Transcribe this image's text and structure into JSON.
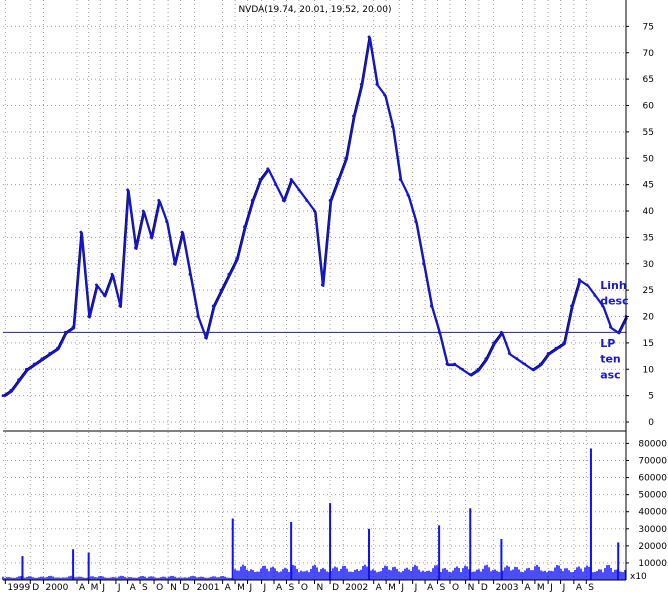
{
  "colors": {
    "price_series": "#1414d2",
    "price_alt": "#000000",
    "volume": "#1010ff",
    "support_line": "#2020a0",
    "grid": "#a0a0a0",
    "annotation": "#1a1acc"
  },
  "chart_data": [
    {
      "type": "line",
      "title": "NVDA(19.74, 20.01, 19.52, 20.00)",
      "ylim": [
        0,
        78
      ],
      "y_ticks": [
        0,
        5,
        10,
        15,
        20,
        25,
        30,
        35,
        40,
        45,
        50,
        55,
        60,
        65,
        70,
        75
      ],
      "y_tick_labels": [
        "0",
        "5",
        "10",
        "15",
        "20",
        "25",
        "30",
        "35",
        "40",
        "45",
        "50",
        "55",
        "60",
        "65",
        "70",
        "75"
      ],
      "horizontal_line": 17,
      "x_range": [
        0,
        80
      ],
      "series": [
        {
          "x": [
            0,
            1,
            2,
            3,
            4,
            5,
            6,
            7,
            8,
            9,
            10,
            11,
            12,
            13,
            14,
            15,
            16,
            17,
            18,
            19,
            20,
            21,
            22,
            23,
            24,
            25,
            26,
            27,
            28,
            29,
            30,
            31,
            32,
            33,
            34,
            35,
            36,
            37,
            38,
            39,
            40,
            41,
            42,
            43,
            44,
            45,
            46,
            47,
            48,
            49,
            50,
            51,
            52,
            53,
            54,
            55,
            56,
            57,
            58,
            59,
            60,
            61,
            62,
            63,
            64,
            65,
            66,
            67,
            68,
            69,
            70,
            71,
            72,
            73,
            74,
            75,
            76,
            77,
            78,
            79,
            80
          ],
          "values": [
            5,
            6,
            8,
            10,
            11,
            12,
            13,
            14,
            17,
            18,
            36,
            20,
            26,
            24,
            28,
            22,
            44,
            33,
            40,
            35,
            42,
            38,
            30,
            36,
            28,
            20,
            16,
            22,
            25,
            28,
            31,
            37,
            42,
            46,
            48,
            45,
            42,
            46,
            44,
            42,
            40,
            26,
            42,
            46,
            50,
            58,
            64,
            73,
            64,
            62,
            56,
            46,
            43,
            38,
            30,
            22,
            17,
            11,
            11,
            10,
            9,
            10,
            12,
            15,
            17,
            13,
            12,
            11,
            10,
            11,
            13,
            14,
            15,
            22,
            27,
            26,
            24,
            22,
            18,
            17,
            20
          ]
        }
      ],
      "annotations": [
        {
          "text": "Linh",
          "x": 79,
          "y": 26
        },
        {
          "text": "desc",
          "x": 79,
          "y": 23
        },
        {
          "text": "LP",
          "x": 79,
          "y": 15
        },
        {
          "text": "ten",
          "x": 79,
          "y": 12
        },
        {
          "text": "asc",
          "x": 79,
          "y": 9
        }
      ]
    },
    {
      "type": "bar",
      "ylim": [
        0,
        80000
      ],
      "y_ticks": [
        10000,
        20000,
        30000,
        40000,
        50000,
        60000,
        70000,
        80000
      ],
      "y_tick_labels": [
        "10000",
        "20000",
        "30000",
        "40000",
        "50000",
        "60000",
        "70000",
        "80000"
      ],
      "unit_label": "x10",
      "x_range": [
        0,
        80
      ],
      "spikes": [
        {
          "x": 2.5,
          "value": 14000
        },
        {
          "x": 9,
          "value": 18000
        },
        {
          "x": 11,
          "value": 16000
        },
        {
          "x": 29.5,
          "value": 36000
        },
        {
          "x": 37,
          "value": 34000
        },
        {
          "x": 42,
          "value": 45000
        },
        {
          "x": 47,
          "value": 30000
        },
        {
          "x": 56,
          "value": 32000
        },
        {
          "x": 60,
          "value": 42000
        },
        {
          "x": 64,
          "value": 24000
        },
        {
          "x": 75.5,
          "value": 77000
        },
        {
          "x": 79,
          "value": 22000
        }
      ]
    }
  ],
  "x_axis": {
    "labels": [
      {
        "x": 0.3,
        "text": "1999"
      },
      {
        "x": 3.5,
        "text": "D"
      },
      {
        "x": 5.2,
        "text": "2000"
      },
      {
        "x": 9.5,
        "text": "A"
      },
      {
        "x": 11,
        "text": "M"
      },
      {
        "x": 12.5,
        "text": "J"
      },
      {
        "x": 14.5,
        "text": "J"
      },
      {
        "x": 16,
        "text": "A"
      },
      {
        "x": 17.6,
        "text": "S"
      },
      {
        "x": 19.4,
        "text": "O"
      },
      {
        "x": 21.2,
        "text": "N"
      },
      {
        "x": 22.8,
        "text": "D"
      },
      {
        "x": 24.6,
        "text": "2001"
      },
      {
        "x": 28.2,
        "text": "A"
      },
      {
        "x": 29.8,
        "text": "M"
      },
      {
        "x": 31.4,
        "text": "J"
      },
      {
        "x": 33.2,
        "text": "J"
      },
      {
        "x": 34.8,
        "text": "A"
      },
      {
        "x": 36.4,
        "text": "S"
      },
      {
        "x": 38,
        "text": "O"
      },
      {
        "x": 40,
        "text": "N"
      },
      {
        "x": 42,
        "text": "D"
      },
      {
        "x": 43.7,
        "text": "2002"
      },
      {
        "x": 47.6,
        "text": "A"
      },
      {
        "x": 49.2,
        "text": "M"
      },
      {
        "x": 50.9,
        "text": "J"
      },
      {
        "x": 52.6,
        "text": "J"
      },
      {
        "x": 54.2,
        "text": "A"
      },
      {
        "x": 55.8,
        "text": "S"
      },
      {
        "x": 57.4,
        "text": "O"
      },
      {
        "x": 59.4,
        "text": "N"
      },
      {
        "x": 61.1,
        "text": "D"
      },
      {
        "x": 63,
        "text": "2003"
      },
      {
        "x": 66.7,
        "text": "A"
      },
      {
        "x": 68.3,
        "text": "M"
      },
      {
        "x": 70,
        "text": "J"
      },
      {
        "x": 71.6,
        "text": "J"
      },
      {
        "x": 73.3,
        "text": "A"
      },
      {
        "x": 74.9,
        "text": "S"
      }
    ]
  }
}
